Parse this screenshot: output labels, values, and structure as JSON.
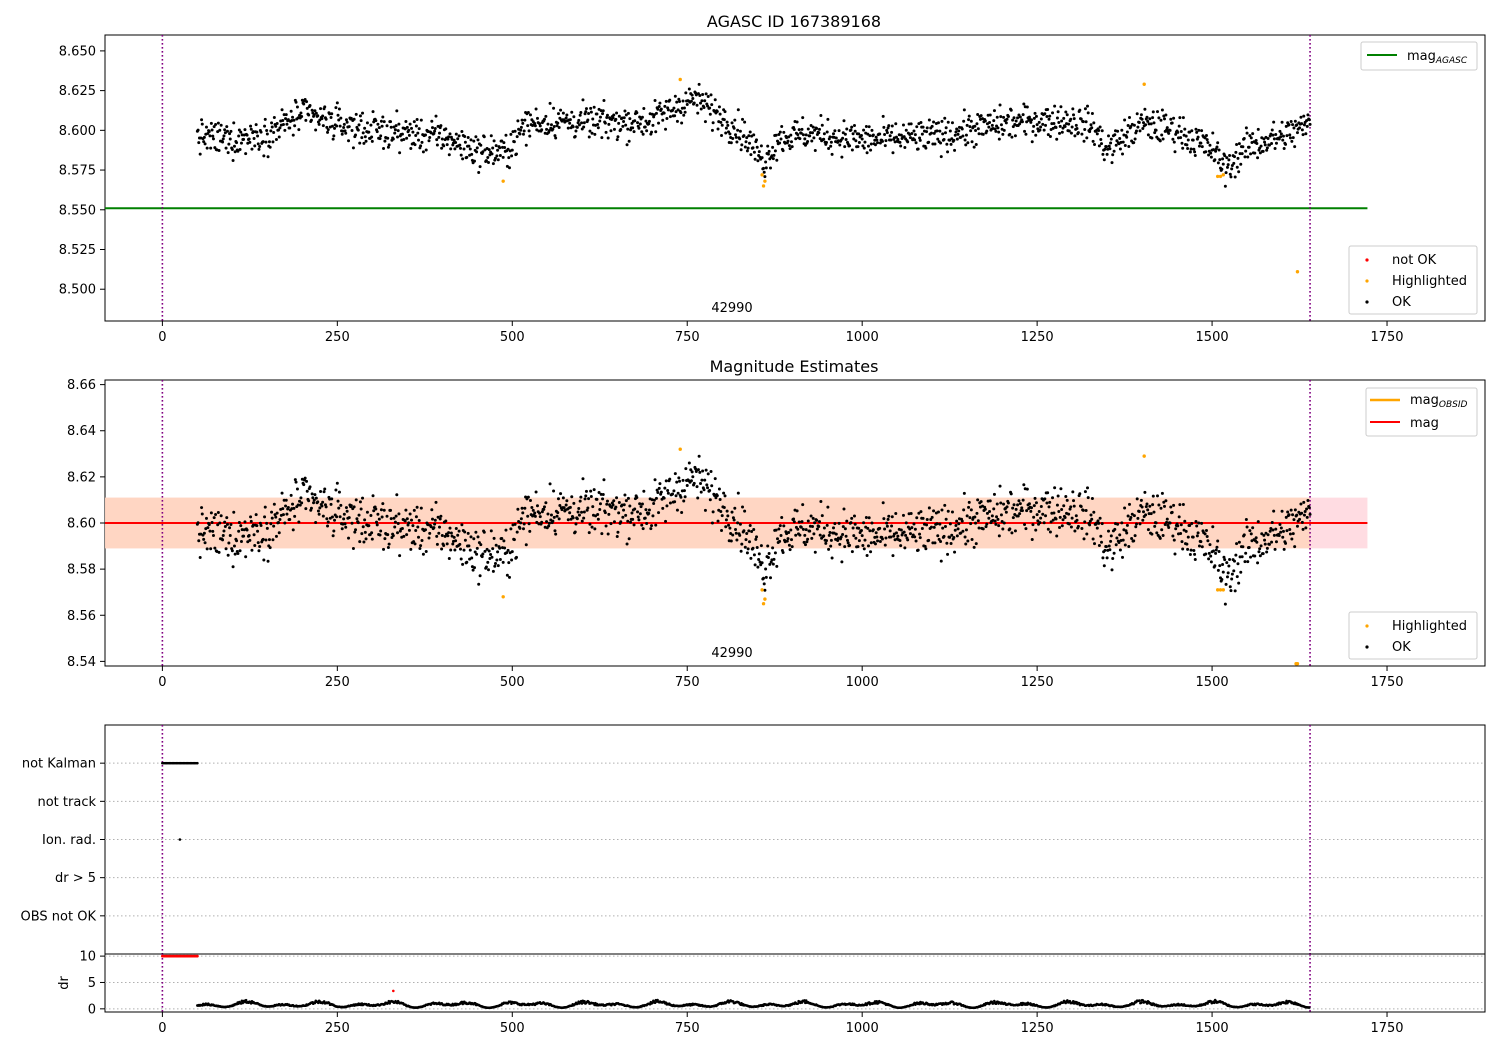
{
  "colors": {
    "ok": "#000000",
    "highlighted": "#ffa500",
    "not_ok": "#ff0000",
    "mag_agasc": "#008000",
    "mag_obsid": "#ffa500",
    "mag": "#ff0000",
    "band_outer": "#ffc0cb",
    "band_inner": "#ffd5c0",
    "obs_boundary": "#800080",
    "flag_grid": "#b0b0b0"
  },
  "chart_data": [
    {
      "type": "scatter",
      "title": "AGASC ID 167389168",
      "xlim": [
        -82,
        1890
      ],
      "ylim": [
        8.48,
        8.66
      ],
      "xticks": [
        0,
        250,
        500,
        750,
        1000,
        1250,
        1500,
        1750
      ],
      "yticks": [
        8.5,
        8.525,
        8.55,
        8.575,
        8.6,
        8.625,
        8.65
      ],
      "ytick_decimals": 3,
      "grid": false,
      "observation_label": "42990",
      "observation_boundaries": [
        0,
        1640
      ],
      "mag_agasc": 8.551,
      "mag_agasc_xrange": [
        -82,
        1722
      ],
      "highlighted_points": [
        [
          487,
          8.568
        ],
        [
          740,
          8.632
        ],
        [
          857,
          8.572
        ],
        [
          859,
          8.565
        ],
        [
          861,
          8.568
        ],
        [
          1403,
          8.629
        ],
        [
          1508,
          8.571
        ],
        [
          1512,
          8.571
        ],
        [
          1516,
          8.572
        ],
        [
          1622,
          8.511
        ]
      ],
      "legend_lines": {
        "position": "top-right",
        "entries": [
          {
            "label": "mag",
            "sub": "AGASC"
          }
        ]
      },
      "legend_points": {
        "position": "bottom-right",
        "entries": [
          "not OK",
          "Highlighted",
          "OK"
        ]
      }
    },
    {
      "type": "scatter",
      "title": "Magnitude Estimates",
      "xlim": [
        -82,
        1890
      ],
      "ylim": [
        8.538,
        8.662
      ],
      "xticks": [
        0,
        250,
        500,
        750,
        1000,
        1250,
        1500,
        1750
      ],
      "yticks": [
        8.54,
        8.56,
        8.58,
        8.6,
        8.62,
        8.64,
        8.66
      ],
      "ytick_decimals": 2,
      "grid": false,
      "observation_label": "42990",
      "observation_boundaries": [
        0,
        1640
      ],
      "mag": 8.6,
      "mag_obsid": 8.6,
      "band_outer": [
        8.589,
        8.611
      ],
      "band_inner": [
        8.589,
        8.611
      ],
      "band_xrange": [
        -82,
        1722
      ],
      "inner_band_xrange": [
        -82,
        1640
      ],
      "highlighted_points": [
        [
          487,
          8.568
        ],
        [
          740,
          8.632
        ],
        [
          857,
          8.571
        ],
        [
          859,
          8.565
        ],
        [
          861,
          8.567
        ],
        [
          1403,
          8.629
        ],
        [
          1508,
          8.571
        ],
        [
          1512,
          8.571
        ],
        [
          1516,
          8.571
        ],
        [
          1620,
          8.539
        ],
        [
          1622,
          8.539
        ]
      ],
      "legend_lines": {
        "position": "top-right",
        "entries": [
          {
            "label": "mag",
            "sub": "OBSID"
          },
          {
            "label": "mag",
            "sub": ""
          }
        ]
      },
      "legend_points": {
        "position": "bottom-right",
        "entries": [
          "Highlighted",
          "OK"
        ]
      }
    },
    {
      "type": "scatter",
      "title": "",
      "xlim": [
        -82,
        1890
      ],
      "categories": [
        "not Kalman",
        "not track",
        "Ion. rad.",
        "dr > 5",
        "OBS not OK"
      ],
      "observation_boundaries": [
        0,
        1640
      ],
      "flag_not_kalman_x": [
        0,
        50
      ],
      "flag_ion_rad_x": [
        25
      ],
      "grid": true
    },
    {
      "type": "scatter",
      "title": "",
      "xlim": [
        -82,
        1890
      ],
      "ylim": [
        -0.6,
        10.4
      ],
      "xticks": [
        0,
        250,
        500,
        750,
        1000,
        1250,
        1500,
        1750
      ],
      "yticks": [
        0,
        5,
        10
      ],
      "ylabel": "dr",
      "grid": true,
      "observation_boundaries": [
        0,
        1640
      ],
      "dr_clipped_x": [
        0,
        50
      ],
      "dr_clipped_value": 10,
      "dr_outlier": [
        330,
        3.4
      ],
      "dr_typical_range": [
        0.2,
        1.7
      ]
    }
  ],
  "legend": {
    "not_ok": "not OK",
    "highlighted": "Highlighted",
    "ok": "OK"
  }
}
